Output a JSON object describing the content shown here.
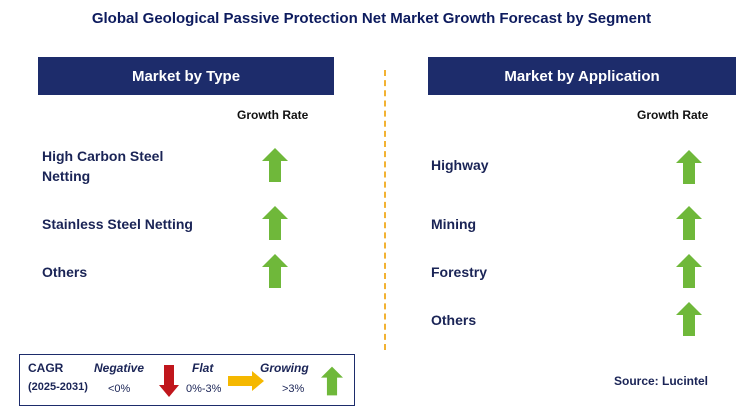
{
  "title": "Global Geological Passive Protection Net Market Growth Forecast by Segment",
  "left_panel": {
    "header": "Market by Type",
    "growth_rate_label": "Growth Rate",
    "items": [
      {
        "label": "High Carbon Steel Netting",
        "trend": "growing"
      },
      {
        "label": "Stainless Steel Netting",
        "trend": "growing"
      },
      {
        "label": "Others",
        "trend": "growing"
      }
    ]
  },
  "right_panel": {
    "header": "Market by Application",
    "growth_rate_label": "Growth Rate",
    "items": [
      {
        "label": "Highway",
        "trend": "growing"
      },
      {
        "label": "Mining",
        "trend": "growing"
      },
      {
        "label": "Forestry",
        "trend": "growing"
      },
      {
        "label": "Others",
        "trend": "growing"
      }
    ]
  },
  "legend": {
    "cagr": "CAGR",
    "years": "(2025-2031)",
    "negative": {
      "name": "Negative",
      "range": "<0%",
      "icon": "down-arrow-red"
    },
    "flat": {
      "name": "Flat",
      "range": "0%-3%",
      "icon": "right-arrow-yellow"
    },
    "growing": {
      "name": "Growing",
      "range": ">3%",
      "icon": "up-arrow-green"
    }
  },
  "source": "Source: Lucintel",
  "colors": {
    "header_bg": "#1d2c6b",
    "growing": "#6fb83a",
    "negative": "#c0161c",
    "flat": "#f5b800",
    "divider": "#f2b233"
  }
}
